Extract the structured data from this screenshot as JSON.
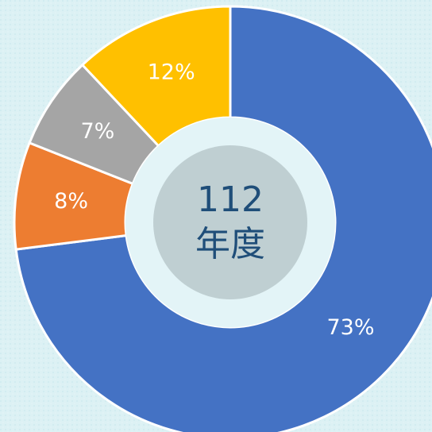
{
  "chart_data": {
    "type": "donut",
    "center_label": [
      "112",
      "年度"
    ],
    "values": [
      73,
      8,
      7,
      12
    ],
    "value_labels": [
      "73%",
      "8%",
      "7%",
      "12%"
    ],
    "colors": [
      "#4472c4",
      "#ed7d31",
      "#a5a5a5",
      "#ffc000"
    ]
  }
}
